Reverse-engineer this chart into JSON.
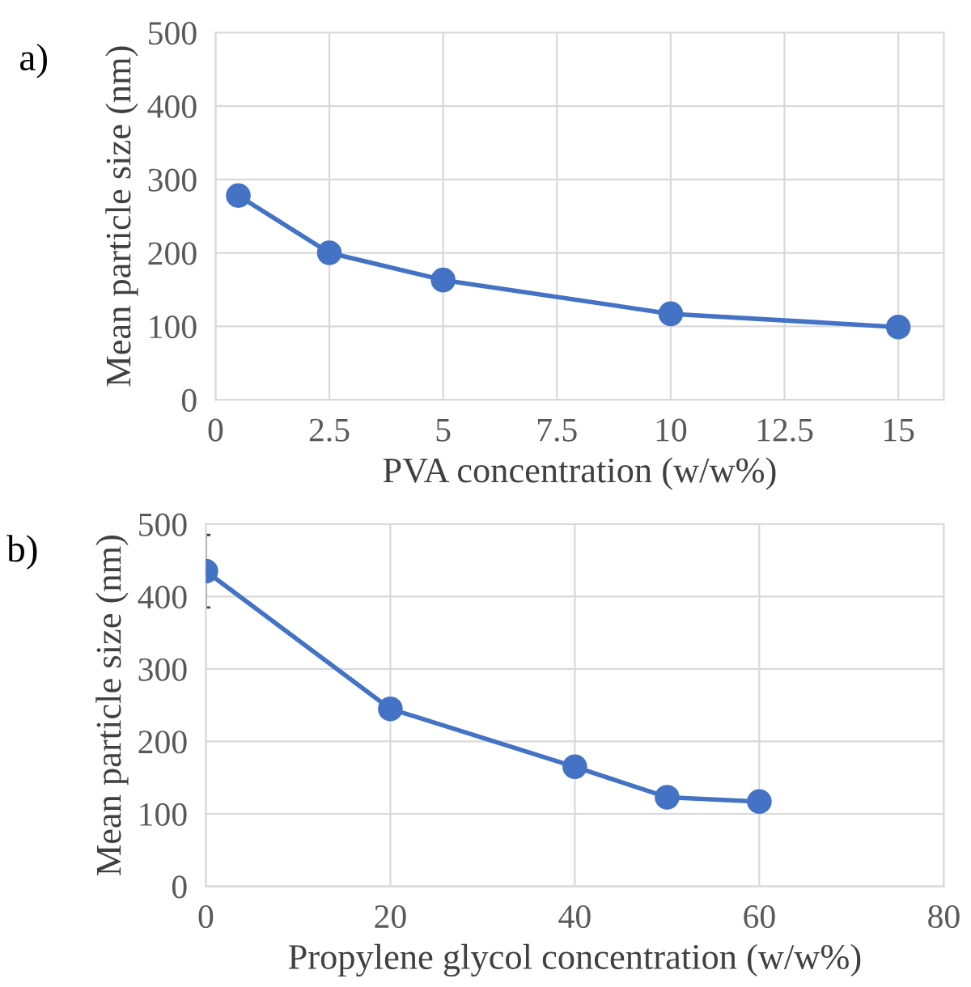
{
  "chart_data": [
    {
      "type": "line",
      "xlabel": "PVA concentration (w/w%)",
      "ylabel": "Mean particle size (nm)",
      "annotations": [
        "a)"
      ],
      "x": [
        0.5,
        2.5,
        5,
        10,
        15
      ],
      "series": [
        {
          "color": "#4472c4",
          "values": [
            278,
            200,
            163,
            117,
            99
          ]
        }
      ],
      "xlim": [
        0,
        16
      ],
      "xticks": [
        0,
        2.5,
        5,
        7.5,
        10,
        12.5,
        15
      ],
      "ylim": [
        0,
        500
      ],
      "yticks": [
        0,
        100,
        200,
        300,
        400,
        500
      ],
      "grid": true,
      "marker": "circle",
      "line_style": "solid"
    },
    {
      "type": "line",
      "xlabel": "Propylene glycol concentration (w/w%)",
      "ylabel": "Mean particle size (nm)",
      "annotations": [
        "b)"
      ],
      "x": [
        0,
        20,
        40,
        50,
        60
      ],
      "series": [
        {
          "color": "#4472c4",
          "values": [
            435,
            245,
            165,
            123,
            117
          ],
          "errors": [
            50,
            null,
            null,
            null,
            null
          ]
        }
      ],
      "xlim": [
        0,
        80
      ],
      "xticks": [
        0,
        20,
        40,
        60,
        80
      ],
      "ylim": [
        0,
        500
      ],
      "yticks": [
        0,
        100,
        200,
        300,
        400,
        500
      ],
      "grid": true,
      "marker": "circle",
      "line_style": "solid"
    }
  ]
}
